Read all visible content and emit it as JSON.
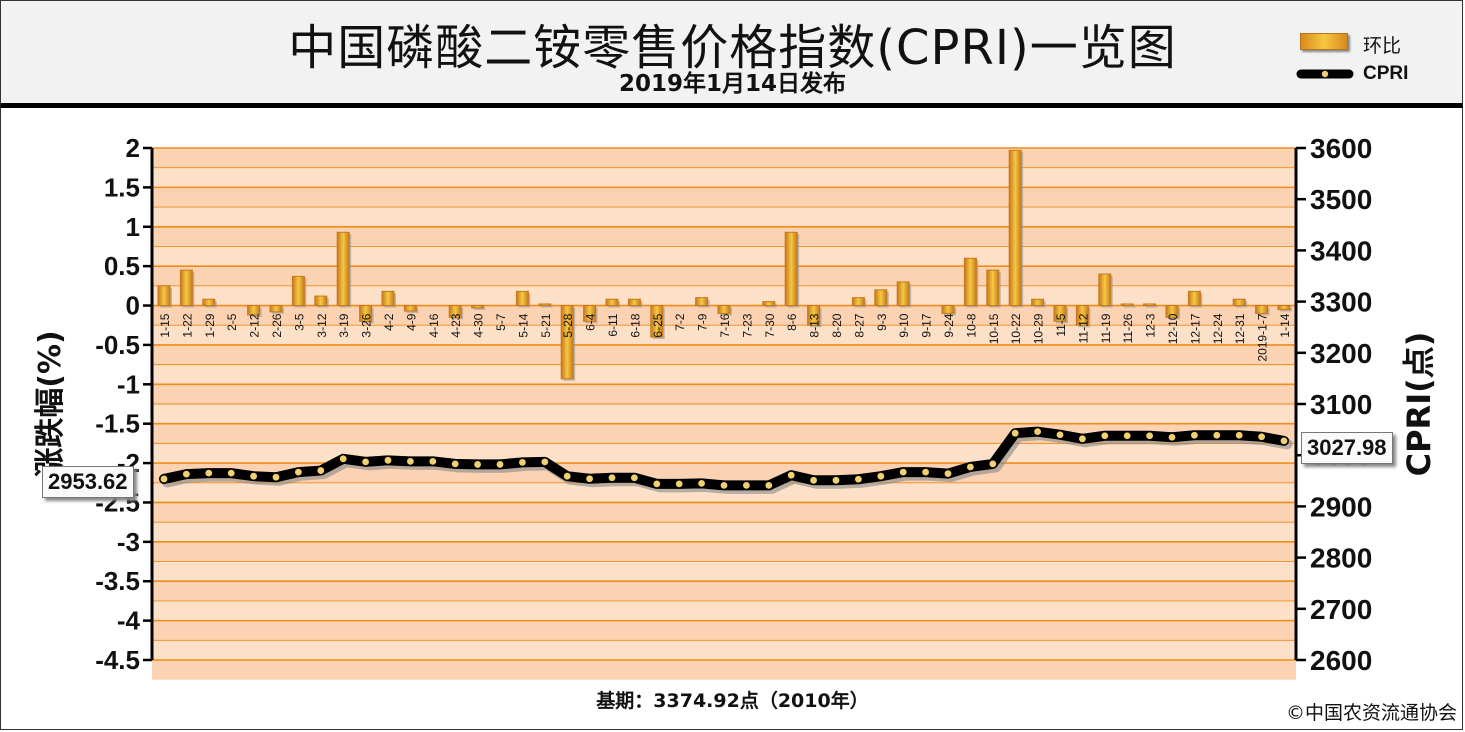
{
  "header": {
    "title": "中国磷酸二铵零售价格指数(CPRI)一览图",
    "subtitle": "2019年1月14日发布"
  },
  "legend": {
    "bar_label": "环比",
    "line_label": "CPRI"
  },
  "footer": {
    "base_period": "基期：3374.92点（2010年）",
    "copyright": "©中国农资流通协会"
  },
  "callouts": {
    "first_value": "2953.62",
    "last_value": "3027.98"
  },
  "colors": {
    "bar": "#e8a825",
    "bar_edge": "#c8781c",
    "plot_band": "#fde0c8",
    "grid": "#f08c1a",
    "line": "#000000",
    "marker": "#f0d070"
  },
  "chart_data": {
    "type": "bar+line",
    "categories": [
      "1-15",
      "1-22",
      "1-29",
      "2-5",
      "2-12",
      "2-26",
      "3-5",
      "3-12",
      "3-19",
      "3-26",
      "4-2",
      "4-9",
      "4-16",
      "4-23",
      "4-30",
      "5-7",
      "5-14",
      "5-21",
      "5-28",
      "6-4",
      "6-11",
      "6-18",
      "6-25",
      "7-2",
      "7-9",
      "7-16",
      "7-23",
      "7-30",
      "8-6",
      "8-13",
      "8-20",
      "8-27",
      "9-3",
      "9-10",
      "9-17",
      "9-24",
      "10-8",
      "10-15",
      "10-22",
      "10-29",
      "11-5",
      "11-12",
      "11-19",
      "11-26",
      "12-3",
      "12-10",
      "12-17",
      "12-24",
      "12-31",
      "2019-1-7",
      "1-14"
    ],
    "series": [
      {
        "name": "环比",
        "type": "bar",
        "axis": "left",
        "values": [
          0.25,
          0.45,
          0.08,
          0,
          -0.12,
          -0.08,
          0.37,
          0.12,
          0.93,
          -0.2,
          0.18,
          -0.07,
          0,
          -0.15,
          -0.03,
          0,
          0.18,
          0.02,
          -0.93,
          -0.2,
          0.08,
          0.08,
          -0.4,
          0,
          0.1,
          -0.1,
          0,
          0.05,
          0.93,
          -0.25,
          0,
          0.1,
          0.2,
          0.3,
          0,
          -0.1,
          0.6,
          0.45,
          1.97,
          0.08,
          -0.2,
          -0.25,
          0.4,
          0.02,
          0.02,
          -0.15,
          0.18,
          0,
          0.08,
          -0.1,
          -0.05
        ]
      },
      {
        "name": "CPRI",
        "type": "line",
        "axis": "right",
        "values": [
          2953.62,
          2963,
          2965,
          2965,
          2959,
          2957,
          2967,
          2970,
          2993,
          2987,
          2990,
          2988,
          2988,
          2983,
          2982,
          2982,
          2986,
          2987,
          2959,
          2954,
          2956,
          2956,
          2944,
          2944,
          2945,
          2941,
          2941,
          2941,
          2961,
          2951,
          2951,
          2953,
          2959,
          2967,
          2967,
          2964,
          2977,
          2983,
          3043,
          3046,
          3040,
          3032,
          3038,
          3038,
          3038,
          3035,
          3039,
          3039,
          3039,
          3036,
          3027.98
        ]
      }
    ],
    "yaxis_left": {
      "label": "涨跌幅(%)",
      "min": -4.5,
      "max": 2,
      "step": 0.5,
      "ticks": [
        "-4.5",
        "-4",
        "-3.5",
        "-3",
        "-2.5",
        "-2",
        "-1.5",
        "-1",
        "-0.5",
        "0",
        "0.5",
        "1",
        "1.5",
        "2"
      ]
    },
    "yaxis_right": {
      "label": "CPRI(点)",
      "min": 2600,
      "max": 3600,
      "step": 100,
      "ticks": [
        "2600",
        "2700",
        "2800",
        "2900",
        "3000",
        "3100",
        "3200",
        "3300",
        "3400",
        "3500",
        "3600"
      ]
    },
    "grid": true,
    "legend_position": "top-right"
  }
}
